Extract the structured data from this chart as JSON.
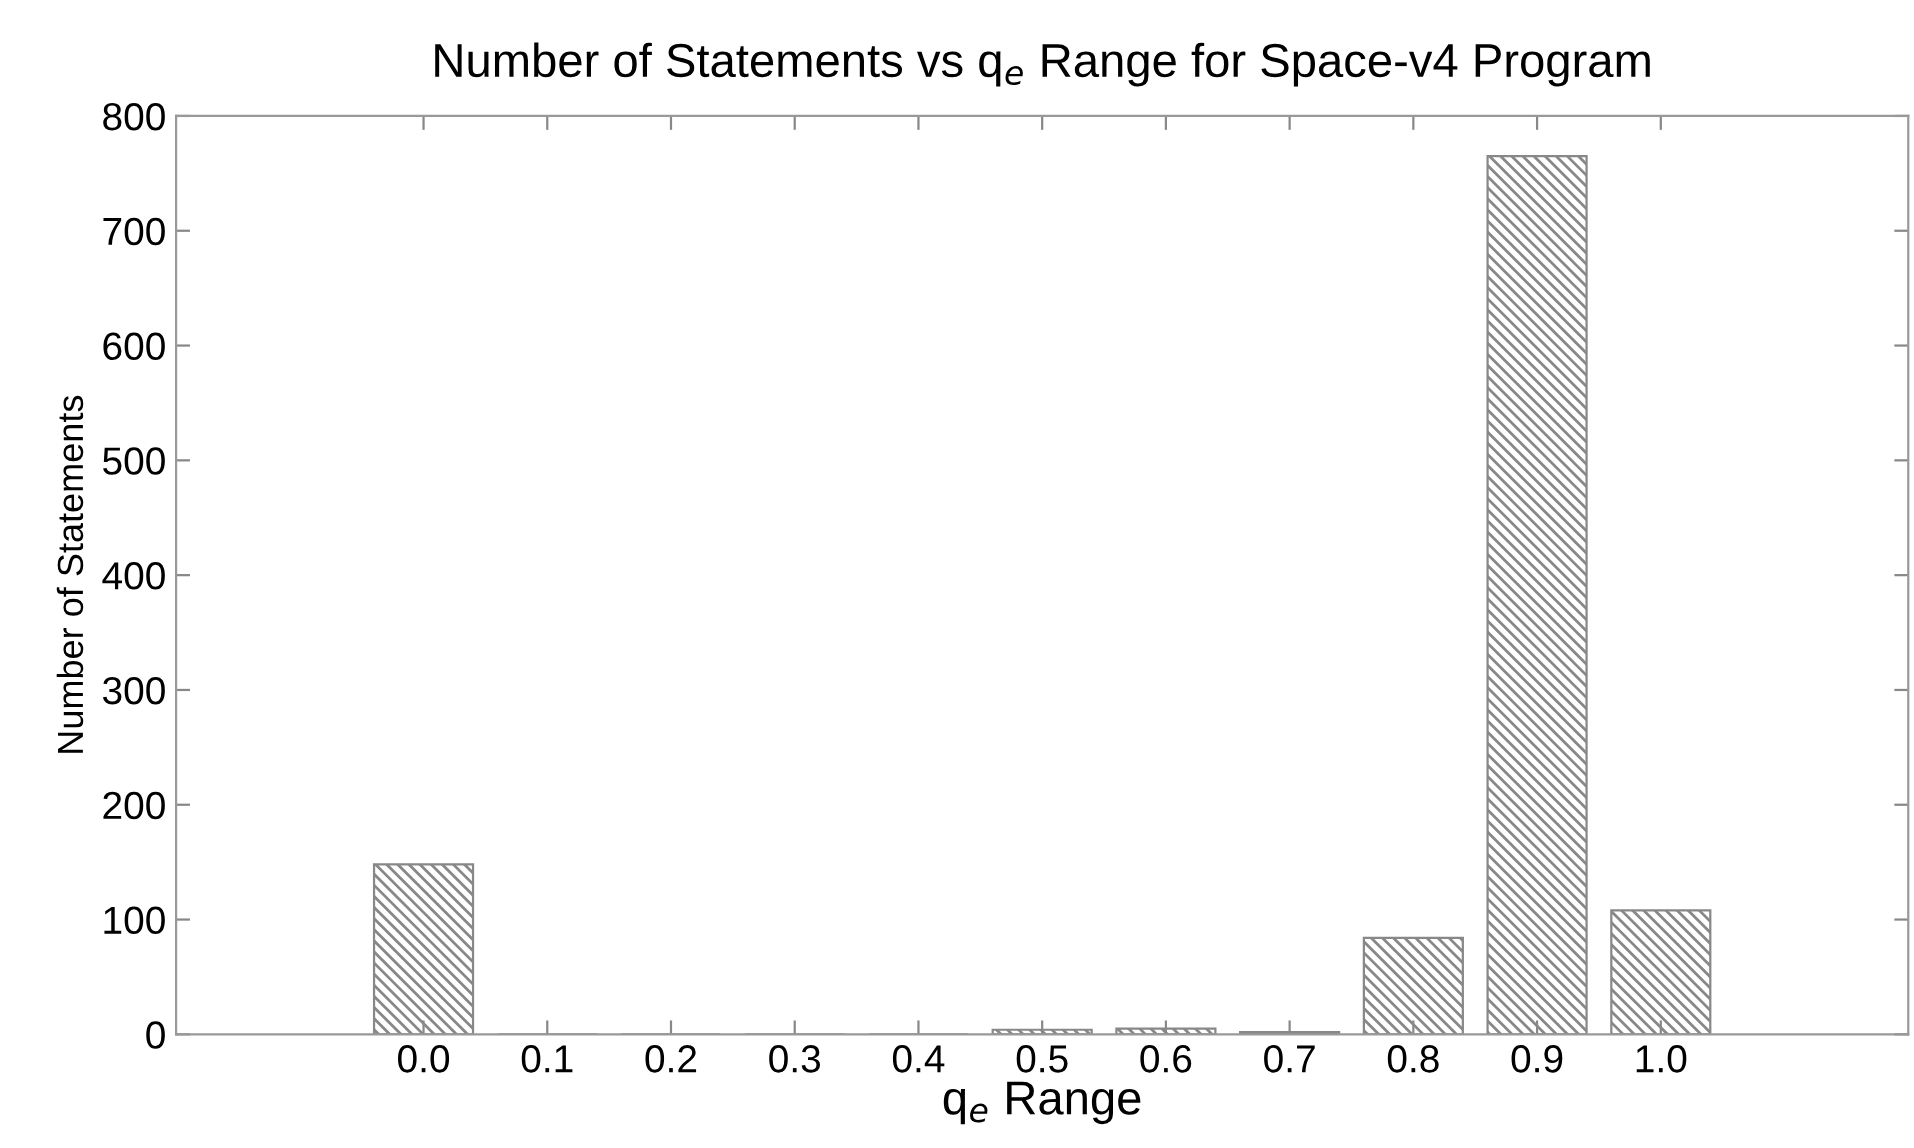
{
  "chart_data": {
    "type": "bar",
    "title": "Number of Statements vs q$_{e}$ Range for Space-v4 Program",
    "xlabel": "q$_{e}$ Range",
    "ylabel": "Number of Statements",
    "categories": [
      "0.0",
      "0.1",
      "0.2",
      "0.3",
      "0.4",
      "0.5",
      "0.6",
      "0.7",
      "0.8",
      "0.9",
      "1.0"
    ],
    "values": [
      148,
      0,
      0,
      0,
      0,
      4,
      5,
      2,
      84,
      765,
      108
    ],
    "color": "#888888",
    "ylim": [
      0,
      800
    ],
    "yticks": [
      0,
      100,
      200,
      300,
      400,
      500,
      600,
      700,
      800
    ],
    "grid": false
  }
}
